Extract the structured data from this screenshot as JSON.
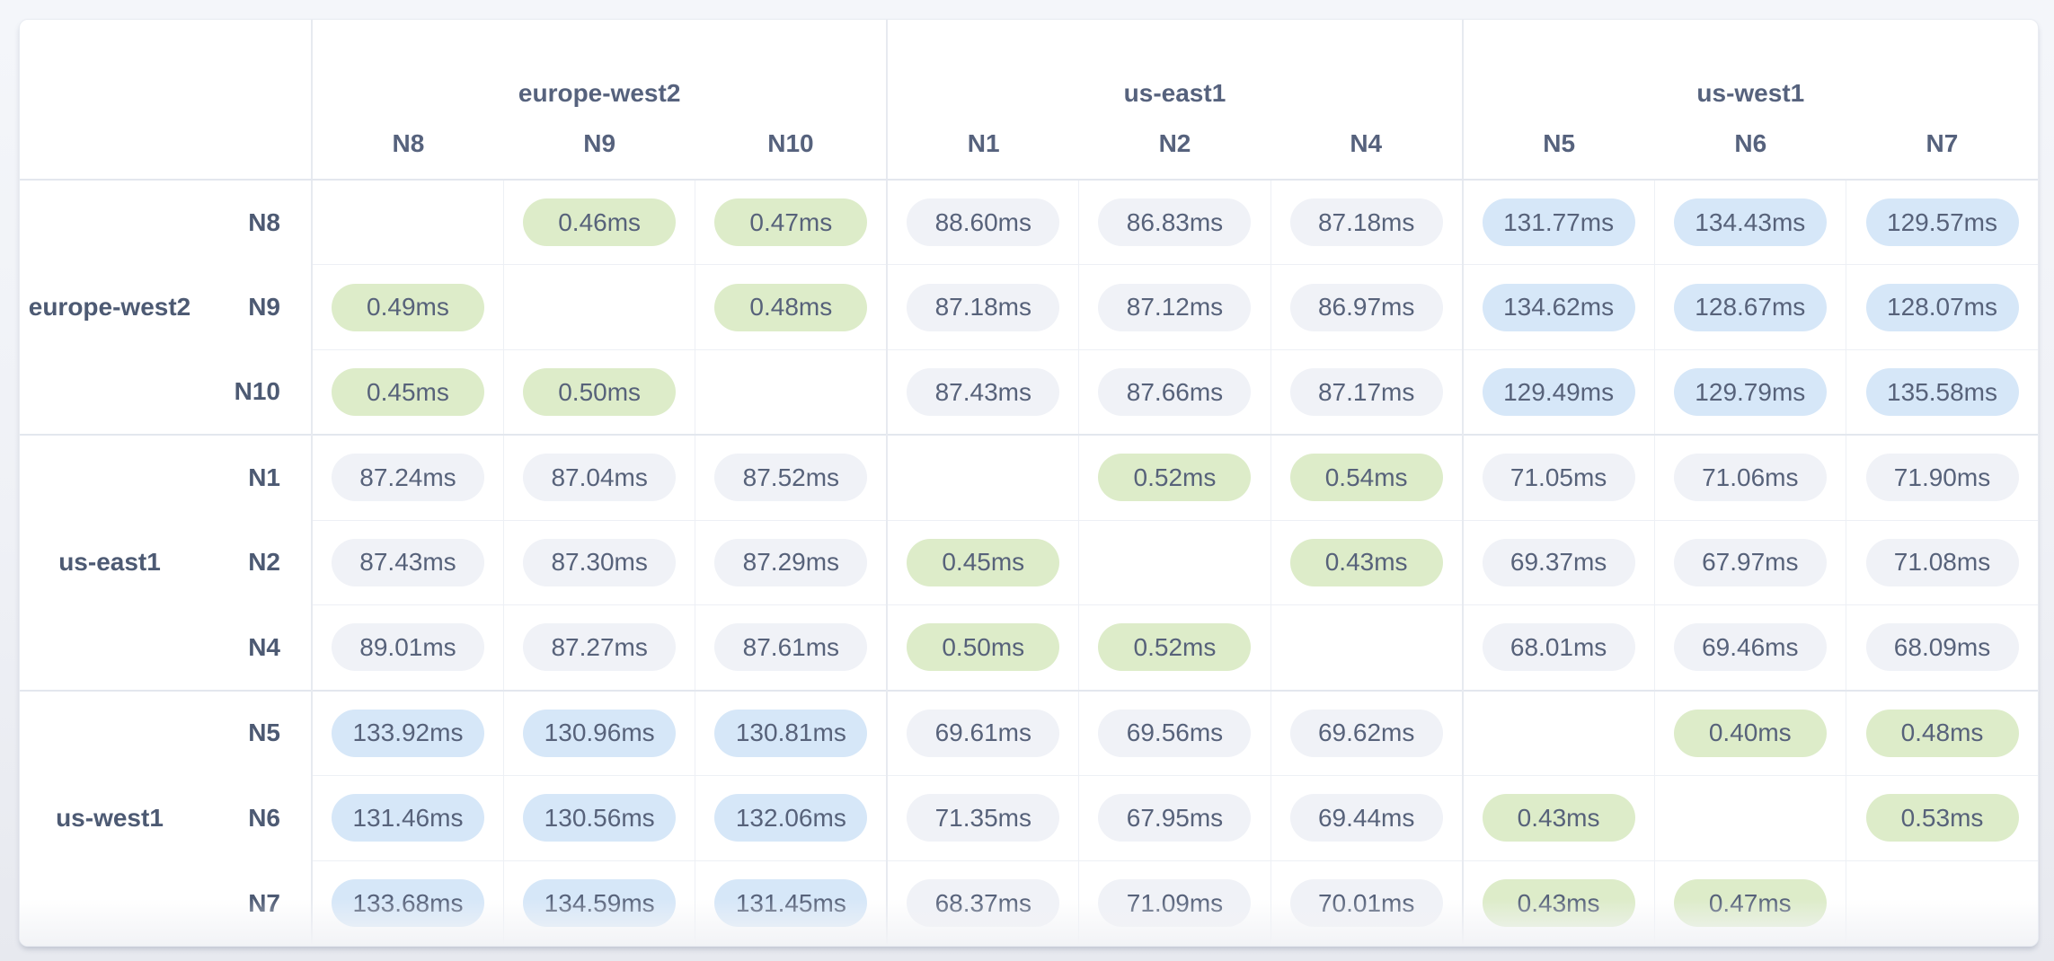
{
  "theme": {
    "page_bg_top": "#f4f6fa",
    "page_bg_bottom": "#e7e9ef",
    "card_bg": "#ffffff",
    "border_light": "#edf0f5",
    "border_group": "#e3e7ee",
    "header_text": "#56627d",
    "row_label_text": "#4d5a73",
    "value_text": "#57627a"
  },
  "chart_data": {
    "type": "heatmap",
    "title": "",
    "unit": "ms",
    "value_format": "{value}ms",
    "col_groups": [
      {
        "region": "europe-west2",
        "nodes": [
          "N8",
          "N9",
          "N10"
        ]
      },
      {
        "region": "us-east1",
        "nodes": [
          "N1",
          "N2",
          "N4"
        ]
      },
      {
        "region": "us-west1",
        "nodes": [
          "N5",
          "N6",
          "N7"
        ]
      }
    ],
    "row_groups": [
      {
        "region": "europe-west2",
        "rows": [
          {
            "node": "N8",
            "values": [
              null,
              0.46,
              0.47,
              88.6,
              86.83,
              87.18,
              131.77,
              134.43,
              129.57
            ]
          },
          {
            "node": "N9",
            "values": [
              0.49,
              null,
              0.48,
              87.18,
              87.12,
              86.97,
              134.62,
              128.67,
              128.07
            ]
          },
          {
            "node": "N10",
            "values": [
              0.45,
              0.5,
              null,
              87.43,
              87.66,
              87.17,
              129.49,
              129.79,
              135.58
            ]
          }
        ]
      },
      {
        "region": "us-east1",
        "rows": [
          {
            "node": "N1",
            "values": [
              87.24,
              87.04,
              87.52,
              null,
              0.52,
              0.54,
              71.05,
              71.06,
              71.9
            ]
          },
          {
            "node": "N2",
            "values": [
              87.43,
              87.3,
              87.29,
              0.45,
              null,
              0.43,
              69.37,
              67.97,
              71.08
            ]
          },
          {
            "node": "N4",
            "values": [
              89.01,
              87.27,
              87.61,
              0.5,
              0.52,
              null,
              68.01,
              69.46,
              68.09
            ]
          }
        ]
      },
      {
        "region": "us-west1",
        "rows": [
          {
            "node": "N5",
            "values": [
              133.92,
              130.96,
              130.81,
              69.61,
              69.56,
              69.62,
              null,
              0.4,
              0.48
            ]
          },
          {
            "node": "N6",
            "values": [
              131.46,
              130.56,
              132.06,
              71.35,
              67.95,
              69.44,
              0.43,
              null,
              0.53
            ]
          },
          {
            "node": "N7",
            "values": [
              133.68,
              134.59,
              131.45,
              68.37,
              71.09,
              70.01,
              0.43,
              0.47,
              null
            ]
          }
        ]
      }
    ],
    "tiers": [
      {
        "name": "low",
        "max_ms": 1,
        "color": "#ddecc9"
      },
      {
        "name": "medium",
        "max_ms": 100,
        "color": "#f0f2f7"
      },
      {
        "name": "high",
        "max_ms": null,
        "color": "#d6e7f8"
      }
    ]
  }
}
